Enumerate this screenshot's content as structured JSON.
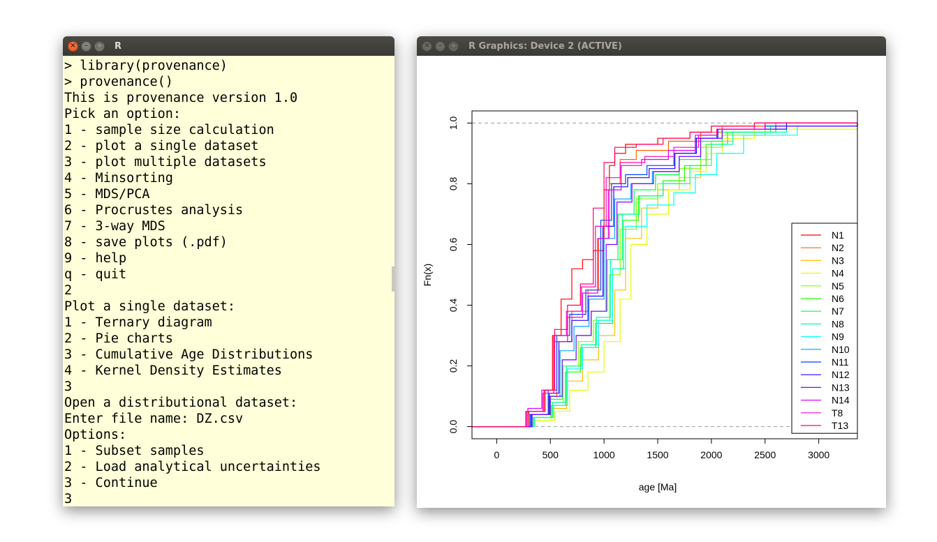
{
  "console_window": {
    "title": "R",
    "lines": [
      "> library(provenance)",
      "> provenance()",
      "This is provenance version 1.0",
      "Pick an option:",
      "1 - sample size calculation",
      "2 - plot a single dataset",
      "3 - plot multiple datasets",
      "4 - Minsorting",
      "5 - MDS/PCA",
      "6 - Procrustes analysis",
      "7 - 3-way MDS",
      "8 - save plots (.pdf)",
      "9 - help",
      "q - quit",
      "2",
      "Plot a single dataset:",
      "1 - Ternary diagram",
      "2 - Pie charts",
      "3 - Cumulative Age Distributions",
      "4 - Kernel Density Estimates",
      "3",
      "Open a distributional dataset:",
      "Enter file name: DZ.csv",
      "Options:",
      "1 - Subset samples",
      "2 - Load analytical uncertainties",
      "3 - Continue",
      "3"
    ]
  },
  "graphics_window": {
    "title": "R Graphics: Device 2 (ACTIVE)"
  },
  "chart_data": {
    "type": "line",
    "subtype": "step (empirical cumulative distribution)",
    "xlabel": "age [Ma]",
    "ylabel": "Fn(x)",
    "xlim": [
      -230,
      3360
    ],
    "ylim": [
      -0.04,
      1.04
    ],
    "xticks": [
      0,
      500,
      1000,
      1500,
      2000,
      2500,
      3000
    ],
    "yticks": [
      0.0,
      0.2,
      0.4,
      0.6,
      0.8,
      1.0
    ],
    "reference_lines": [
      0.0,
      1.0
    ],
    "legend_placement": "bottom-right",
    "series": [
      {
        "name": "N1",
        "color": "#ff0000",
        "points": [
          [
            -230,
            0
          ],
          [
            200,
            0
          ],
          [
            300,
            0.05
          ],
          [
            450,
            0.12
          ],
          [
            520,
            0.3
          ],
          [
            600,
            0.42
          ],
          [
            700,
            0.52
          ],
          [
            800,
            0.55
          ],
          [
            900,
            0.58
          ],
          [
            1000,
            0.78
          ],
          [
            1050,
            0.86
          ],
          [
            1100,
            0.9
          ],
          [
            1200,
            0.93
          ],
          [
            1500,
            0.95
          ],
          [
            1800,
            0.97
          ],
          [
            2000,
            0.99
          ],
          [
            2500,
            1.0
          ],
          [
            3360,
            1.0
          ]
        ]
      },
      {
        "name": "N2",
        "color": "#ff6000",
        "points": [
          [
            -230,
            0
          ],
          [
            220,
            0
          ],
          [
            300,
            0.04
          ],
          [
            480,
            0.1
          ],
          [
            560,
            0.28
          ],
          [
            700,
            0.38
          ],
          [
            850,
            0.45
          ],
          [
            950,
            0.62
          ],
          [
            1050,
            0.8
          ],
          [
            1150,
            0.88
          ],
          [
            1300,
            0.91
          ],
          [
            1600,
            0.94
          ],
          [
            1900,
            0.97
          ],
          [
            2100,
            0.99
          ],
          [
            2600,
            1.0
          ],
          [
            3360,
            1.0
          ]
        ]
      },
      {
        "name": "N3",
        "color": "#ffbf00",
        "points": [
          [
            -230,
            0
          ],
          [
            250,
            0
          ],
          [
            350,
            0.03
          ],
          [
            520,
            0.06
          ],
          [
            650,
            0.15
          ],
          [
            800,
            0.22
          ],
          [
            950,
            0.3
          ],
          [
            1100,
            0.45
          ],
          [
            1200,
            0.62
          ],
          [
            1350,
            0.72
          ],
          [
            1500,
            0.78
          ],
          [
            1700,
            0.82
          ],
          [
            1900,
            0.88
          ],
          [
            2000,
            0.94
          ],
          [
            2200,
            0.97
          ],
          [
            2600,
            0.99
          ],
          [
            3360,
            1.0
          ]
        ]
      },
      {
        "name": "N4",
        "color": "#dfff00",
        "points": [
          [
            -230,
            0
          ],
          [
            260,
            0
          ],
          [
            360,
            0.02
          ],
          [
            540,
            0.05
          ],
          [
            680,
            0.12
          ],
          [
            850,
            0.18
          ],
          [
            1000,
            0.28
          ],
          [
            1150,
            0.42
          ],
          [
            1250,
            0.6
          ],
          [
            1400,
            0.7
          ],
          [
            1600,
            0.78
          ],
          [
            1800,
            0.84
          ],
          [
            1950,
            0.9
          ],
          [
            2100,
            0.95
          ],
          [
            2400,
            0.98
          ],
          [
            3360,
            0.99
          ]
        ]
      },
      {
        "name": "N5",
        "color": "#80ff00",
        "points": [
          [
            -230,
            0
          ],
          [
            240,
            0
          ],
          [
            340,
            0.03
          ],
          [
            500,
            0.08
          ],
          [
            620,
            0.2
          ],
          [
            760,
            0.28
          ],
          [
            900,
            0.35
          ],
          [
            1050,
            0.5
          ],
          [
            1150,
            0.65
          ],
          [
            1300,
            0.75
          ],
          [
            1500,
            0.8
          ],
          [
            1700,
            0.85
          ],
          [
            1900,
            0.92
          ],
          [
            2100,
            0.96
          ],
          [
            2500,
            0.99
          ],
          [
            3360,
            1.0
          ]
        ]
      },
      {
        "name": "N6",
        "color": "#20ff00",
        "points": [
          [
            -230,
            0
          ],
          [
            250,
            0
          ],
          [
            350,
            0.03
          ],
          [
            510,
            0.07
          ],
          [
            640,
            0.18
          ],
          [
            780,
            0.26
          ],
          [
            920,
            0.34
          ],
          [
            1080,
            0.52
          ],
          [
            1180,
            0.68
          ],
          [
            1320,
            0.76
          ],
          [
            1550,
            0.81
          ],
          [
            1750,
            0.86
          ],
          [
            1950,
            0.93
          ],
          [
            2150,
            0.97
          ],
          [
            2600,
            0.99
          ],
          [
            3360,
            1.0
          ]
        ]
      },
      {
        "name": "N7",
        "color": "#00ff40",
        "points": [
          [
            -230,
            0
          ],
          [
            230,
            0
          ],
          [
            330,
            0.04
          ],
          [
            500,
            0.09
          ],
          [
            610,
            0.22
          ],
          [
            740,
            0.3
          ],
          [
            880,
            0.38
          ],
          [
            1030,
            0.55
          ],
          [
            1130,
            0.7
          ],
          [
            1280,
            0.78
          ],
          [
            1480,
            0.83
          ],
          [
            1700,
            0.88
          ],
          [
            1900,
            0.94
          ],
          [
            2100,
            0.97
          ],
          [
            2550,
            0.99
          ],
          [
            3360,
            1.0
          ]
        ]
      },
      {
        "name": "N8",
        "color": "#00ffa0",
        "points": [
          [
            -230,
            0
          ],
          [
            240,
            0
          ],
          [
            340,
            0.03
          ],
          [
            520,
            0.08
          ],
          [
            650,
            0.2
          ],
          [
            790,
            0.27
          ],
          [
            930,
            0.36
          ],
          [
            1060,
            0.55
          ],
          [
            1170,
            0.7
          ],
          [
            1330,
            0.76
          ],
          [
            1550,
            0.8
          ],
          [
            1800,
            0.86
          ],
          [
            2000,
            0.93
          ],
          [
            2200,
            0.97
          ],
          [
            2700,
            0.99
          ],
          [
            3360,
            1.0
          ]
        ]
      },
      {
        "name": "N9",
        "color": "#00ffff",
        "points": [
          [
            -230,
            0
          ],
          [
            250,
            0
          ],
          [
            350,
            0.03
          ],
          [
            530,
            0.07
          ],
          [
            660,
            0.19
          ],
          [
            800,
            0.26
          ],
          [
            950,
            0.35
          ],
          [
            1080,
            0.52
          ],
          [
            1200,
            0.66
          ],
          [
            1400,
            0.73
          ],
          [
            1650,
            0.77
          ],
          [
            1850,
            0.83
          ],
          [
            2050,
            0.9
          ],
          [
            2300,
            0.96
          ],
          [
            2800,
            0.99
          ],
          [
            3360,
            0.99
          ]
        ]
      },
      {
        "name": "N10",
        "color": "#009fff",
        "points": [
          [
            -230,
            0
          ],
          [
            230,
            0
          ],
          [
            320,
            0.04
          ],
          [
            490,
            0.1
          ],
          [
            590,
            0.25
          ],
          [
            720,
            0.33
          ],
          [
            860,
            0.42
          ],
          [
            1000,
            0.62
          ],
          [
            1100,
            0.75
          ],
          [
            1250,
            0.8
          ],
          [
            1450,
            0.84
          ],
          [
            1700,
            0.89
          ],
          [
            1900,
            0.95
          ],
          [
            2100,
            0.98
          ],
          [
            2500,
            0.99
          ],
          [
            3360,
            1.0
          ]
        ]
      },
      {
        "name": "N11",
        "color": "#0040ff",
        "points": [
          [
            -230,
            0
          ],
          [
            220,
            0
          ],
          [
            310,
            0.04
          ],
          [
            480,
            0.12
          ],
          [
            560,
            0.3
          ],
          [
            680,
            0.37
          ],
          [
            830,
            0.45
          ],
          [
            970,
            0.68
          ],
          [
            1070,
            0.8
          ],
          [
            1200,
            0.83
          ],
          [
            1400,
            0.86
          ],
          [
            1650,
            0.9
          ],
          [
            1850,
            0.95
          ],
          [
            2050,
            0.98
          ],
          [
            2500,
            0.99
          ],
          [
            3360,
            1.0
          ]
        ]
      },
      {
        "name": "N12",
        "color": "#2000ff",
        "points": [
          [
            -230,
            0
          ],
          [
            230,
            0
          ],
          [
            320,
            0.04
          ],
          [
            490,
            0.11
          ],
          [
            580,
            0.28
          ],
          [
            700,
            0.35
          ],
          [
            850,
            0.43
          ],
          [
            990,
            0.66
          ],
          [
            1090,
            0.79
          ],
          [
            1220,
            0.82
          ],
          [
            1420,
            0.85
          ],
          [
            1660,
            0.9
          ],
          [
            1860,
            0.95
          ],
          [
            2060,
            0.98
          ],
          [
            2700,
            1.0
          ],
          [
            3360,
            1.0
          ]
        ]
      },
      {
        "name": "N13",
        "color": "#8000ff",
        "points": [
          [
            -230,
            0
          ],
          [
            240,
            0
          ],
          [
            330,
            0.04
          ],
          [
            500,
            0.1
          ],
          [
            610,
            0.22
          ],
          [
            740,
            0.3
          ],
          [
            880,
            0.38
          ],
          [
            1020,
            0.6
          ],
          [
            1120,
            0.74
          ],
          [
            1260,
            0.8
          ],
          [
            1460,
            0.84
          ],
          [
            1700,
            0.89
          ],
          [
            1900,
            0.95
          ],
          [
            2100,
            0.98
          ],
          [
            2600,
            0.99
          ],
          [
            3360,
            1.0
          ]
        ]
      },
      {
        "name": "N14",
        "color": "#df00ff",
        "points": [
          [
            -230,
            0
          ],
          [
            220,
            0
          ],
          [
            290,
            0.06
          ],
          [
            420,
            0.12
          ],
          [
            540,
            0.28
          ],
          [
            660,
            0.36
          ],
          [
            800,
            0.44
          ],
          [
            940,
            0.62
          ],
          [
            1040,
            0.78
          ],
          [
            1160,
            0.86
          ],
          [
            1350,
            0.88
          ],
          [
            1600,
            0.91
          ],
          [
            1850,
            0.96
          ],
          [
            2050,
            0.98
          ],
          [
            2500,
            1.0
          ],
          [
            3360,
            1.0
          ]
        ]
      },
      {
        "name": "T8",
        "color": "#ff00bf",
        "points": [
          [
            -230,
            0
          ],
          [
            210,
            0
          ],
          [
            280,
            0.05
          ],
          [
            430,
            0.11
          ],
          [
            530,
            0.3
          ],
          [
            650,
            0.38
          ],
          [
            790,
            0.46
          ],
          [
            920,
            0.66
          ],
          [
            1020,
            0.82
          ],
          [
            1150,
            0.87
          ],
          [
            1380,
            0.89
          ],
          [
            1650,
            0.92
          ],
          [
            1880,
            0.96
          ],
          [
            2050,
            0.98
          ],
          [
            2400,
            1.0
          ],
          [
            3360,
            1.0
          ]
        ]
      },
      {
        "name": "T13",
        "color": "#ff0060",
        "points": [
          [
            -230,
            0
          ],
          [
            200,
            0
          ],
          [
            270,
            0.05
          ],
          [
            440,
            0.12
          ],
          [
            540,
            0.32
          ],
          [
            660,
            0.4
          ],
          [
            780,
            0.47
          ],
          [
            900,
            0.72
          ],
          [
            1000,
            0.87
          ],
          [
            1100,
            0.92
          ],
          [
            1300,
            0.93
          ],
          [
            1550,
            0.95
          ],
          [
            1800,
            0.97
          ],
          [
            2000,
            0.99
          ],
          [
            2400,
            1.0
          ],
          [
            3360,
            1.0
          ]
        ]
      }
    ]
  }
}
